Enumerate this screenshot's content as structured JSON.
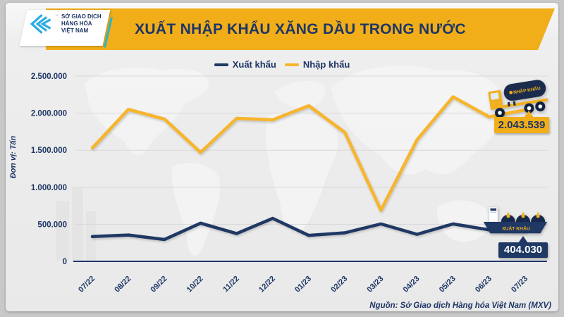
{
  "window": {
    "background": "#c8c8c8",
    "card_background": "#e9e9e9"
  },
  "header": {
    "title": "XUẤT NHẬP KHẨU XĂNG DẦU TRONG NƯỚC",
    "banner_color": "#f1ae19",
    "title_color": "#1e3666",
    "logo": {
      "line1": "SỞ GIAO DỊCH",
      "line2": "HÀNG HÓA",
      "line3": "VIỆT NAM",
      "trademark": "™",
      "mark_color": "#29abe2"
    }
  },
  "legend": {
    "items": [
      {
        "label": "Xuất khẩu",
        "color": "#1f3864"
      },
      {
        "label": "Nhập khẩu",
        "color": "#f7b52c"
      }
    ]
  },
  "axis": {
    "unit_label": "Đơn vị: Tấn"
  },
  "chart_data": {
    "type": "line",
    "title": "XUẤT NHẬP KHẨU XĂNG DẦU TRONG NƯỚC",
    "ylabel": "Đơn vị: Tấn",
    "categories": [
      "07/22",
      "08/22",
      "09/22",
      "10/22",
      "11/22",
      "12/22",
      "01/23",
      "02/23",
      "03/23",
      "04/23",
      "05/23",
      "06/23",
      "07/23"
    ],
    "series": [
      {
        "name": "Xuất khẩu",
        "color": "#1f3864",
        "values": [
          335000,
          355000,
          295000,
          515000,
          375000,
          580000,
          350000,
          385000,
          505000,
          365000,
          505000,
          425000,
          404030
        ]
      },
      {
        "name": "Nhập khẩu",
        "color": "#f7b52c",
        "values": [
          1530000,
          2050000,
          1920000,
          1470000,
          1930000,
          1910000,
          2100000,
          1740000,
          690000,
          1640000,
          2220000,
          1950000,
          2043539
        ]
      }
    ],
    "ylim": [
      0,
      2500000
    ],
    "yticks": [
      {
        "value": 2500000,
        "label": "2.500.000"
      },
      {
        "value": 2000000,
        "label": "2.000.000"
      },
      {
        "value": 1500000,
        "label": "1.500.000"
      },
      {
        "value": 1000000,
        "label": "1.000.000"
      },
      {
        "value": 500000,
        "label": "500.000"
      },
      {
        "value": 0,
        "label": "0"
      }
    ],
    "grid": true,
    "legend_position": "top",
    "annotations": [
      {
        "series": "Nhập khẩu",
        "category": "07/23",
        "label": "2.043.539"
      },
      {
        "series": "Xuất khẩu",
        "category": "07/23",
        "label": "404.030"
      }
    ]
  },
  "callouts": {
    "import": {
      "label": "2.043.539",
      "bg": "#f1ae19",
      "fg": "#1e3666"
    },
    "export": {
      "label": "404.030",
      "bg": "#1f3864",
      "fg": "#ffffff"
    }
  },
  "icons": {
    "truck_label": "NHẬP KHẨU",
    "ship_label": "XUẤT KHẨU"
  },
  "footer": {
    "source": "Nguồn: Sở Giao dịch Hàng hóa Việt Nam (MXV)"
  }
}
